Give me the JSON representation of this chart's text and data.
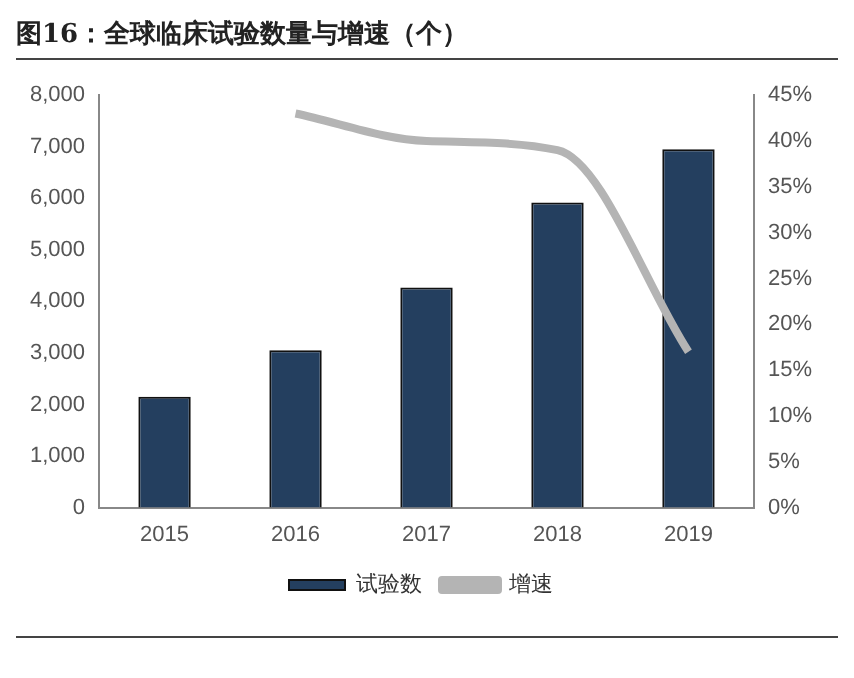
{
  "chart_data": {
    "type": "bar",
    "title": "图16：全球临床试验数量与增速（个）",
    "categories": [
      "2015",
      "2016",
      "2017",
      "2018",
      "2019"
    ],
    "series": [
      {
        "name": "试验数",
        "color": "#243f5f",
        "values": [
          2150,
          3050,
          4270,
          5920,
          6950
        ]
      },
      {
        "name": "增速",
        "type": "line",
        "axis": "y2",
        "color": "#b4b4b4",
        "values": [
          null,
          43,
          40,
          39,
          17
        ]
      }
    ],
    "ylim": [
      0,
      8000
    ],
    "yticks": [
      {
        "value": 0,
        "label": "0"
      },
      {
        "value": 1000,
        "label": "1,000"
      },
      {
        "value": 2000,
        "label": "2,000"
      },
      {
        "value": 3000,
        "label": "3,000"
      },
      {
        "value": 4000,
        "label": "4,000"
      },
      {
        "value": 5000,
        "label": "5,000"
      },
      {
        "value": 6000,
        "label": "6,000"
      },
      {
        "value": 7000,
        "label": "7,000"
      },
      {
        "value": 8000,
        "label": "8,000"
      }
    ],
    "y2lim": [
      0,
      45
    ],
    "y2ticks": [
      {
        "value": 0,
        "label": "0%"
      },
      {
        "value": 5,
        "label": "5%"
      },
      {
        "value": 10,
        "label": "10%"
      },
      {
        "value": 15,
        "label": "15%"
      },
      {
        "value": 20,
        "label": "20%"
      },
      {
        "value": 25,
        "label": "25%"
      },
      {
        "value": 30,
        "label": "30%"
      },
      {
        "value": 35,
        "label": "35%"
      },
      {
        "value": 40,
        "label": "40%"
      },
      {
        "value": 45,
        "label": "45%"
      }
    ],
    "grid": false,
    "legend": "bottom",
    "marker": "none"
  }
}
